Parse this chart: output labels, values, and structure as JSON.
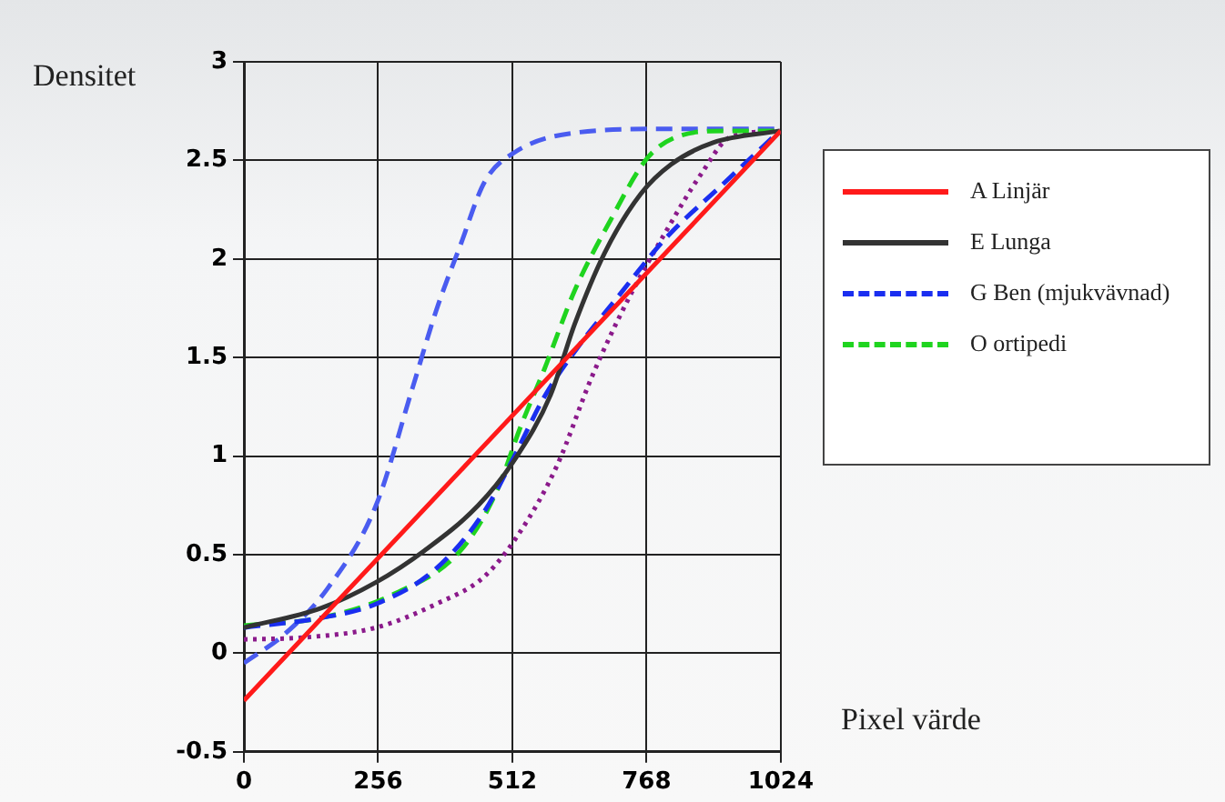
{
  "chart_data": {
    "type": "line",
    "xlabel": "Pixel värde",
    "ylabel": "Densitet",
    "xlim": [
      0,
      1024
    ],
    "xticks": [
      0,
      256,
      512,
      768,
      1024
    ],
    "ylim": [
      -0.5,
      3
    ],
    "yticks": [
      -0.5,
      0,
      0.5,
      1,
      1.5,
      2,
      2.5,
      3
    ],
    "grid": true,
    "legend": "right",
    "marker": "none",
    "series": [
      {
        "name": "A  Linjär",
        "color": "#ff1a1a",
        "line_style": "solid",
        "x": [
          0,
          1024
        ],
        "values": [
          -0.24,
          2.65
        ]
      },
      {
        "name": "E  Lunga",
        "color": "#333333",
        "line_style": "solid",
        "x": [
          0,
          148,
          252,
          344,
          447,
          516,
          585,
          631,
          688,
          757,
          815,
          895,
          1022
        ],
        "values": [
          0.13,
          0.23,
          0.36,
          0.52,
          0.75,
          0.98,
          1.31,
          1.67,
          2.03,
          2.33,
          2.48,
          2.59,
          2.65
        ]
      },
      {
        "name": "G  Ben (mjukvävnad)",
        "color": "#1a2ef0",
        "line_style": "dashed",
        "x": [
          0,
          148,
          252,
          367,
          459,
          516,
          573,
          642,
          711,
          803,
          918,
          1022
        ],
        "values": [
          0.13,
          0.18,
          0.25,
          0.43,
          0.72,
          1.0,
          1.3,
          1.57,
          1.8,
          2.1,
          2.39,
          2.65
        ]
      },
      {
        "name": "O  ortipedi",
        "color": "#1fd41f",
        "line_style": "dashed",
        "x": [
          0,
          148,
          286,
          413,
          482,
          528,
          573,
          631,
          700,
          769,
          826,
          918,
          1022
        ],
        "values": [
          0.14,
          0.18,
          0.3,
          0.52,
          0.82,
          1.15,
          1.44,
          1.84,
          2.2,
          2.51,
          2.62,
          2.65,
          2.65
        ]
      },
      {
        "color": "#8b1a8b",
        "line_style": "dotted",
        "x": [
          0,
          114,
          252,
          367,
          459,
          528,
          597,
          665,
          734,
          803,
          872,
          929,
          1022
        ],
        "values": [
          0.07,
          0.08,
          0.13,
          0.25,
          0.39,
          0.62,
          0.95,
          1.41,
          1.8,
          2.13,
          2.43,
          2.62,
          2.65
        ]
      },
      {
        "color": "#4a5cf0",
        "line_style": "dashed",
        "x": [
          0,
          79,
          160,
          252,
          321,
          367,
          413,
          459,
          516,
          631,
          803,
          1022
        ],
        "values": [
          -0.05,
          0.1,
          0.33,
          0.75,
          1.34,
          1.74,
          2.07,
          2.39,
          2.54,
          2.64,
          2.66,
          2.66
        ]
      }
    ]
  }
}
